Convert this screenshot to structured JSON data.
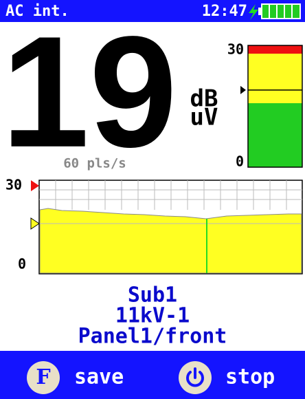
{
  "status_bar": {
    "mode": "AC int.",
    "time": "12:47"
  },
  "reading": {
    "value": "19",
    "unit_top": "dB",
    "unit_bottom": "uV",
    "rate": "60 pls/s"
  },
  "gauge": {
    "max": 30,
    "min": 0
  },
  "graph": {
    "max": 30,
    "min": 0
  },
  "location": [
    "Sub1",
    "11kV-1",
    "Panel1/front"
  ],
  "buttons": [
    {
      "key": "F",
      "label": "save"
    },
    {
      "label": "stop"
    }
  ]
}
